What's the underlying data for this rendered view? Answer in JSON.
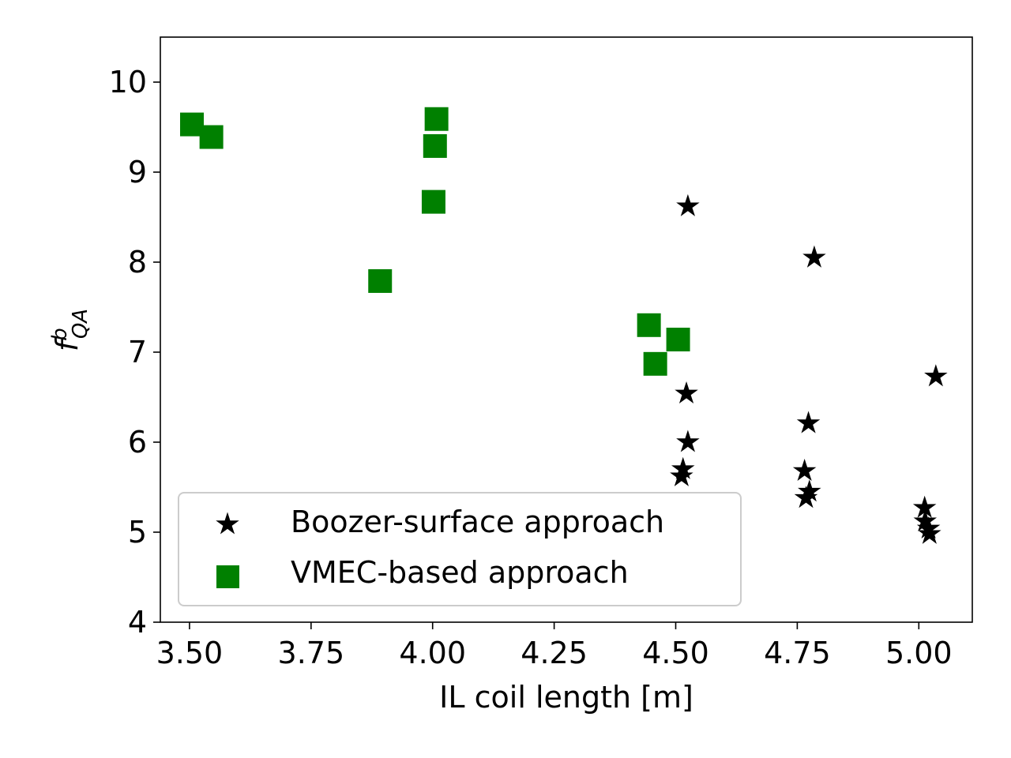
{
  "chart_data": {
    "type": "scatter",
    "title": "",
    "xlabel": "IL coil length [m]",
    "ylabel": {
      "base": "f",
      "sup": "b",
      "sub": "QA"
    },
    "xlim": [
      3.44,
      5.11
    ],
    "ylim": [
      4,
      10.5
    ],
    "xticks": [
      3.5,
      3.75,
      4.0,
      4.25,
      4.5,
      4.75,
      5.0
    ],
    "xtick_labels": [
      "3.50",
      "3.75",
      "4.00",
      "4.25",
      "4.50",
      "4.75",
      "5.00"
    ],
    "yticks": [
      4,
      5,
      6,
      7,
      8,
      9,
      10
    ],
    "ytick_labels": [
      "4",
      "5",
      "6",
      "7",
      "8",
      "9",
      "10"
    ],
    "grid": false,
    "legend_position": "lower-left",
    "series": [
      {
        "name": "Boozer-surface approach",
        "marker": "star",
        "color": "#000000",
        "points": [
          [
            4.525,
            8.62
          ],
          [
            4.785,
            8.05
          ],
          [
            5.035,
            6.73
          ],
          [
            4.522,
            6.54
          ],
          [
            4.525,
            6.0
          ],
          [
            4.515,
            5.7
          ],
          [
            4.512,
            5.62
          ],
          [
            4.773,
            6.21
          ],
          [
            4.765,
            5.68
          ],
          [
            4.775,
            5.45
          ],
          [
            4.768,
            5.38
          ],
          [
            5.012,
            5.27
          ],
          [
            5.013,
            5.12
          ],
          [
            5.02,
            5.04
          ],
          [
            5.022,
            4.98
          ]
        ]
      },
      {
        "name": "VMEC-based approach",
        "marker": "square",
        "color": "#008000",
        "points": [
          [
            3.505,
            9.53
          ],
          [
            3.545,
            9.39
          ],
          [
            4.008,
            9.59
          ],
          [
            4.005,
            9.29
          ],
          [
            4.002,
            8.67
          ],
          [
            3.892,
            7.79
          ],
          [
            4.445,
            7.3
          ],
          [
            4.505,
            7.14
          ],
          [
            4.458,
            6.87
          ]
        ]
      }
    ]
  }
}
